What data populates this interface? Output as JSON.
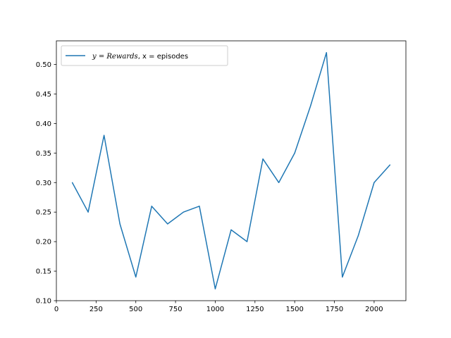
{
  "chart_data": {
    "type": "line",
    "title": "",
    "xlabel": "",
    "ylabel": "",
    "xlim": [
      0,
      2200
    ],
    "ylim": [
      0.1,
      0.54
    ],
    "xticks": [
      0,
      250,
      500,
      750,
      1000,
      1250,
      1500,
      1750,
      2000
    ],
    "yticks": [
      0.1,
      0.15,
      0.2,
      0.25,
      0.3,
      0.35,
      0.4,
      0.45,
      0.5
    ],
    "xtick_labels": [
      "0",
      "250",
      "500",
      "750",
      "1000",
      "1250",
      "1500",
      "1750",
      "2000"
    ],
    "ytick_labels": [
      "0.10",
      "0.15",
      "0.20",
      "0.25",
      "0.30",
      "0.35",
      "0.40",
      "0.45",
      "0.50"
    ],
    "grid": false,
    "legend_position": "upper-left",
    "series": [
      {
        "name_parts": [
          "y",
          " = ",
          "Rewards",
          ", x = episodes"
        ],
        "color": "#1f77b4",
        "x": [
          100,
          200,
          300,
          400,
          500,
          600,
          700,
          800,
          900,
          1000,
          1100,
          1200,
          1300,
          1400,
          1500,
          1600,
          1700,
          1800,
          1900,
          2000,
          2100
        ],
        "y": [
          0.3,
          0.25,
          0.38,
          0.23,
          0.14,
          0.26,
          0.23,
          0.25,
          0.26,
          0.12,
          0.22,
          0.2,
          0.34,
          0.3,
          0.35,
          0.43,
          0.52,
          0.14,
          0.21,
          0.3,
          0.33
        ]
      }
    ]
  }
}
